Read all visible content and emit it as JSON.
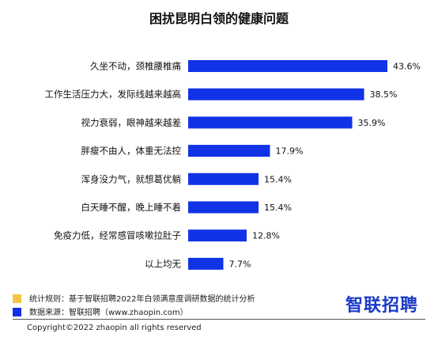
{
  "chart_data": {
    "type": "bar",
    "orientation": "horizontal",
    "title": "困扰昆明白领的健康问题",
    "categories": [
      "久坐不动，颈椎腰椎痛",
      "工作生活压力大，发际线越来越高",
      "视力衰弱，眼神越来越差",
      "胖瘦不由人，体重无法控",
      "浑身没力气，就想葛优躺",
      "白天睡不醒，晚上睡不着",
      "免疫力低，经常感冒咳嗽拉肚子",
      "以上均无"
    ],
    "values": [
      43.6,
      38.5,
      35.9,
      17.9,
      15.4,
      15.4,
      12.8,
      7.7
    ],
    "value_labels": [
      "43.6%",
      "38.5%",
      "35.9%",
      "17.9%",
      "15.4%",
      "15.4%",
      "12.8%",
      "7.7%"
    ],
    "unit": "%",
    "xlim": [
      0,
      43.6
    ],
    "grid": false,
    "bar_color": "#1133e6"
  },
  "legend": {
    "stats_rule": "统计规则：基于智联招聘2022年白领满意度调研数据的统计分析",
    "data_source": "数据来源：智联招聘（www.zhaopin.com）",
    "stats_color": "#f5c542",
    "source_color": "#1133e6"
  },
  "logo_text": "智联招聘",
  "copyright": "Copyright©2022 zhaopin all rights reserved"
}
